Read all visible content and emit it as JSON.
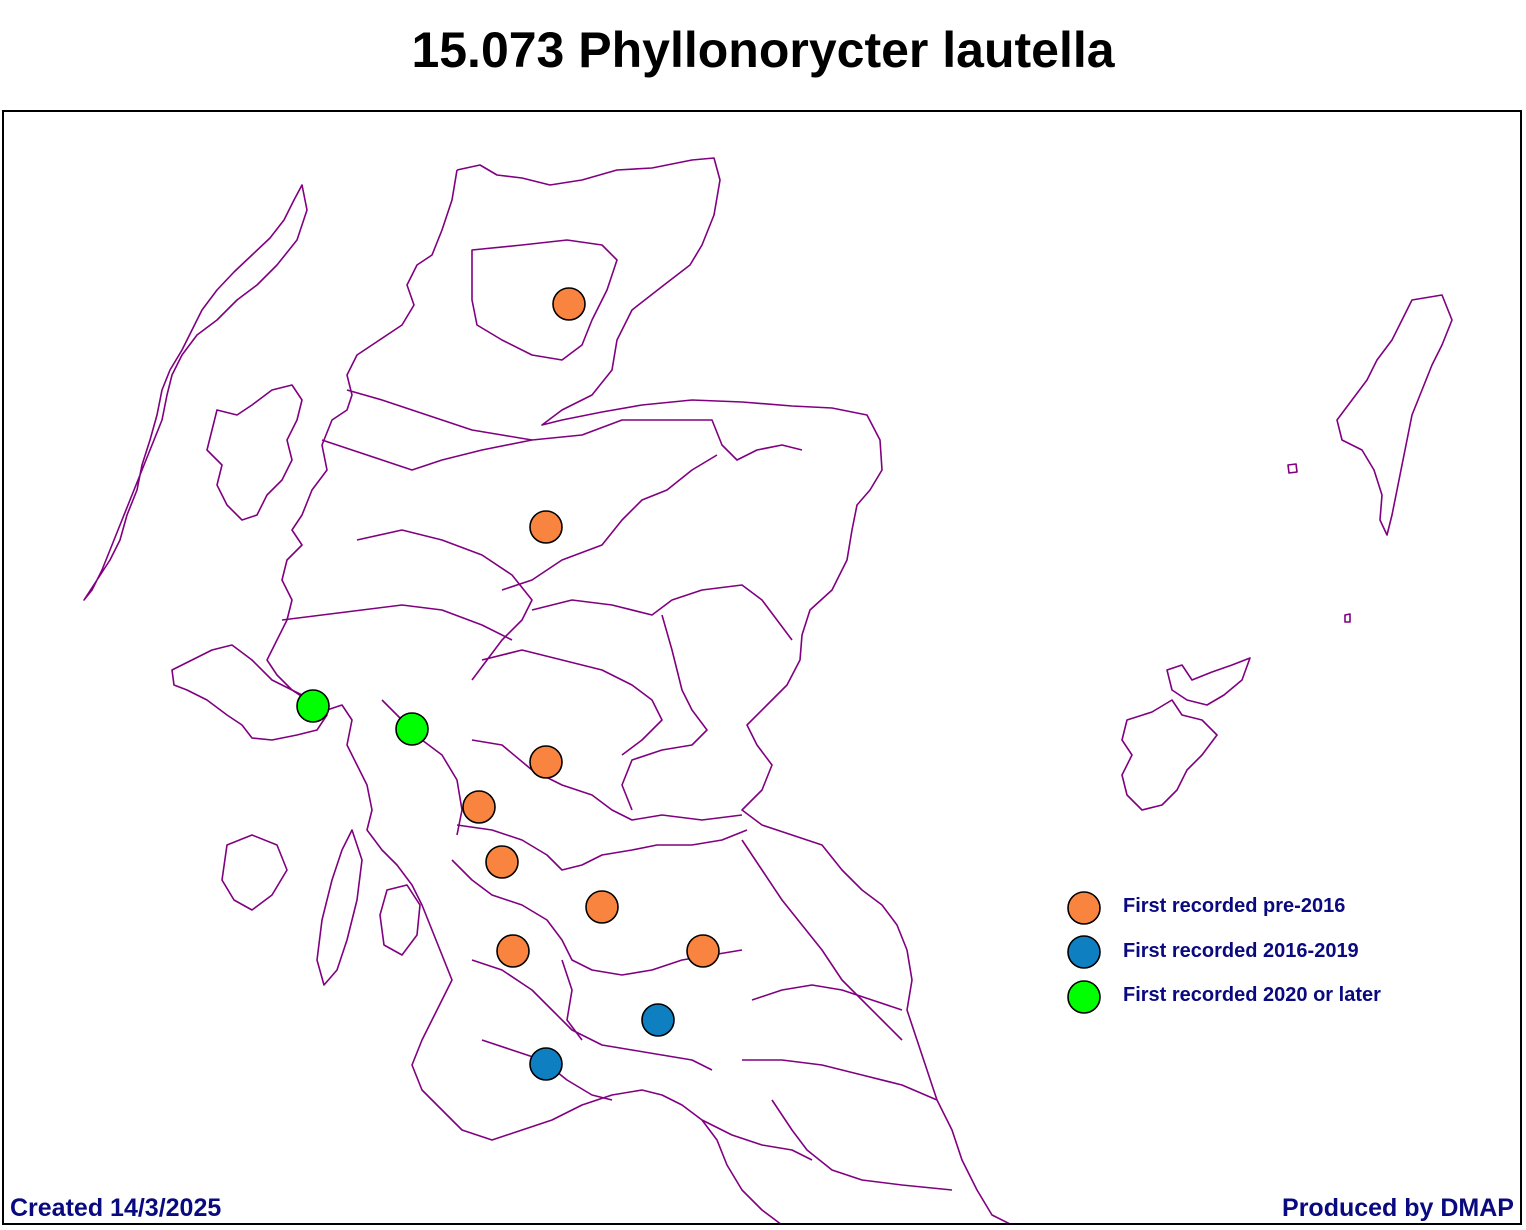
{
  "title": "15.073 Phyllonorycter lautella",
  "footer": {
    "created": "Created 14/3/2025",
    "produced": "Produced by DMAP"
  },
  "colors": {
    "boundary": "#800080",
    "pre_2016": "#f98440",
    "y2016_2019": "#0e7fc0",
    "y2020_later": "#00ff00",
    "text": "#0a0a80"
  },
  "legend": [
    {
      "label": "First recorded pre-2016",
      "color": "#f98440"
    },
    {
      "label": "First recorded 2016-2019",
      "color": "#0e7fc0"
    },
    {
      "label": "First recorded 2020 or later",
      "color": "#00ff00"
    }
  ],
  "records": [
    {
      "region": "East Sutherland",
      "period": "pre-2016"
    },
    {
      "region": "Easterness",
      "period": "pre-2016"
    },
    {
      "region": "West Perthshire",
      "period": "pre-2016"
    },
    {
      "region": "Stirlingshire",
      "period": "pre-2016"
    },
    {
      "region": "Dunbartonshire",
      "period": "pre-2016"
    },
    {
      "region": "Lanarkshire",
      "period": "pre-2016"
    },
    {
      "region": "Ayrshire",
      "period": "pre-2016"
    },
    {
      "region": "Midlothian",
      "period": "pre-2016"
    },
    {
      "region": "Dumfriesshire",
      "period": "2016-2019"
    },
    {
      "region": "Kirkcudbrightshire",
      "period": "2016-2019"
    },
    {
      "region": "Mull",
      "period": "2020 or later"
    },
    {
      "region": "Main Argyll",
      "period": "2020 or later"
    }
  ]
}
